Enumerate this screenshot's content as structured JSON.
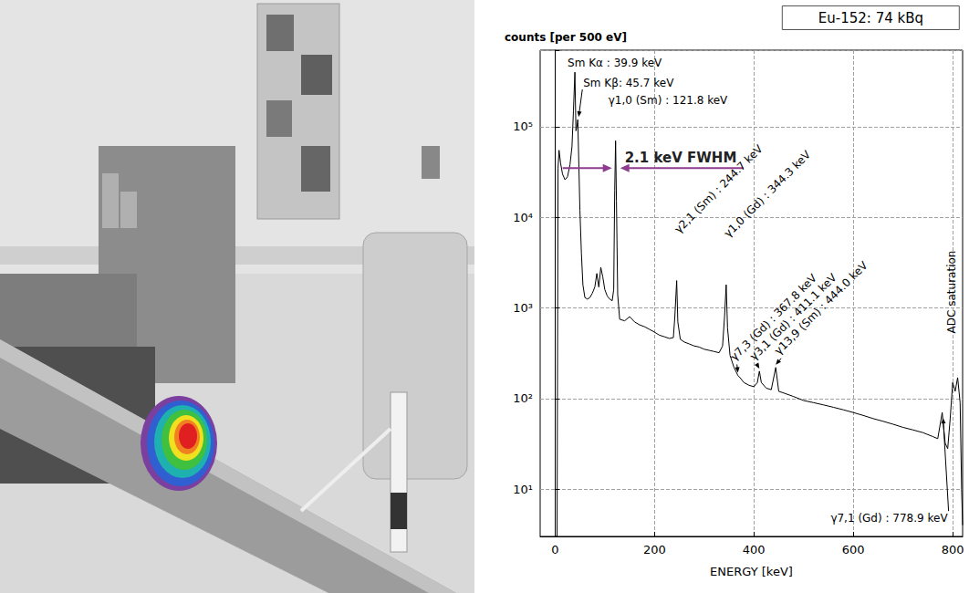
{
  "chart_data": {
    "type": "line",
    "title": "counts [per 500 eV]",
    "source_label": "Eu-152: 74 kBq",
    "x_label": "ENERGY [keV]",
    "log": "y",
    "grid": true,
    "color": "#000000",
    "xlim": [
      -30,
      820
    ],
    "xticks": [
      0,
      200,
      400,
      600,
      800
    ],
    "ylim": [
      3,
      700000
    ],
    "yticks": [
      {
        "value": 10,
        "label": "10¹"
      },
      {
        "value": 100,
        "label": "10²"
      },
      {
        "value": 1000,
        "label": "10³"
      },
      {
        "value": 10000,
        "label": "10⁴"
      },
      {
        "value": 100000,
        "label": "10⁵"
      }
    ],
    "x": [
      0,
      2,
      4,
      6,
      8,
      11,
      15,
      20,
      25,
      30,
      34,
      37,
      39.9,
      42,
      44,
      45.7,
      47,
      50,
      53,
      56,
      60,
      65,
      70,
      75,
      80,
      84,
      88,
      92,
      96,
      100,
      105,
      110,
      115,
      118,
      120,
      121.8,
      123.5,
      126,
      130,
      140,
      150,
      160,
      170,
      180,
      190,
      200,
      210,
      220,
      230,
      238,
      241,
      244.7,
      247,
      252,
      260,
      270,
      280,
      290,
      300,
      310,
      320,
      330,
      337,
      341,
      344.3,
      347,
      352,
      360,
      367.8,
      372,
      380,
      390,
      400,
      407,
      411.1,
      415,
      425,
      435,
      444,
      450,
      460,
      480,
      500,
      520,
      540,
      560,
      580,
      600,
      620,
      640,
      660,
      680,
      700,
      720,
      740,
      760,
      770,
      778.9,
      785,
      790,
      795,
      800,
      805,
      810,
      815,
      818,
      820
    ],
    "values": [
      3,
      3,
      3,
      35000,
      55000,
      40000,
      30000,
      26000,
      28000,
      38000,
      60000,
      150000,
      400000,
      90000,
      100000,
      120000,
      60000,
      12000,
      4000,
      1800,
      1300,
      1250,
      1300,
      1450,
      1700,
      2400,
      1700,
      2800,
      2200,
      1600,
      1350,
      1250,
      1200,
      1600,
      20000,
      70000,
      15000,
      1400,
      750,
      720,
      800,
      700,
      650,
      620,
      580,
      540,
      500,
      480,
      460,
      470,
      800,
      2000,
      700,
      450,
      420,
      400,
      380,
      370,
      350,
      340,
      330,
      320,
      380,
      800,
      1800,
      600,
      300,
      220,
      180,
      170,
      150,
      140,
      135,
      150,
      200,
      150,
      130,
      125,
      220,
      120,
      115,
      105,
      95,
      90,
      85,
      80,
      75,
      70,
      65,
      60,
      56,
      52,
      48,
      45,
      42,
      38,
      36,
      70,
      32,
      28,
      60,
      150,
      120,
      170,
      90,
      10,
      4
    ],
    "annotations": [
      {
        "text": "Sm Kα : 39.9 keV",
        "energy": 39.9,
        "counts": 400000
      },
      {
        "text": "Sm Kβ: 45.7 keV",
        "energy": 45.7,
        "counts": 120000
      },
      {
        "text": "γ1,0 (Sm) : 121.8 keV",
        "energy": 121.8,
        "counts": 70000
      },
      {
        "text": "γ2,1 (Sm) : 244.7 keV",
        "energy": 244.7,
        "counts": 2000
      },
      {
        "text": "γ1,0 (Gd) : 344.3 keV",
        "energy": 344.3,
        "counts": 1800
      },
      {
        "text": "γ7,3 (Gd) : 367.8 keV",
        "energy": 367.8,
        "counts": 180
      },
      {
        "text": "γ3,1 (Gd) : 411.1 keV",
        "energy": 411.1,
        "counts": 200
      },
      {
        "text": "γ13,9 (Sm) : 444.0 keV",
        "energy": 444.0,
        "counts": 220
      },
      {
        "text": "γ7,1 (Gd) : 778.9 keV",
        "energy": 778.9,
        "counts": 70
      }
    ],
    "fwhm_label": "2.1 keV FWHM",
    "saturation_label": {
      "text": "ADC saturation",
      "energy": 805
    }
  }
}
